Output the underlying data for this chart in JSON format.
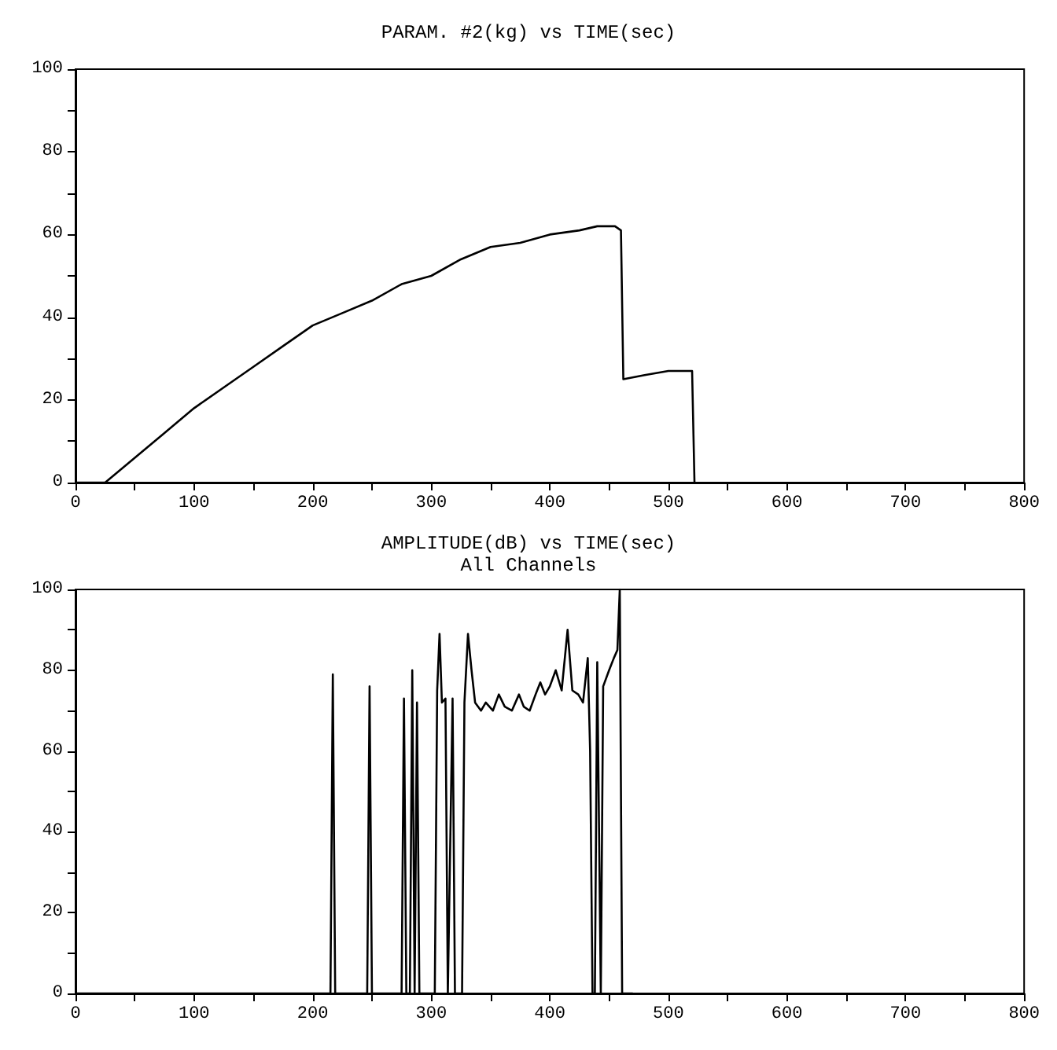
{
  "chart_data": [
    {
      "type": "line",
      "title": "PARAM. #2(kg) vs TIME(sec)",
      "xlim": [
        0,
        800
      ],
      "ylim": [
        0,
        100
      ],
      "xticks": [
        0,
        {
          "value": 50,
          "label": null
        },
        100,
        {
          "value": 150,
          "label": null
        },
        200,
        {
          "value": 250,
          "label": null
        },
        300,
        {
          "value": 350,
          "label": null
        },
        400,
        {
          "value": 450,
          "label": null
        },
        500,
        {
          "value": 550,
          "label": null
        },
        600,
        {
          "value": 650,
          "label": null
        },
        700,
        {
          "value": 750,
          "label": null
        },
        800
      ],
      "yticks": [
        0,
        {
          "value": 10,
          "label": null
        },
        20,
        {
          "value": 30,
          "label": null
        },
        40,
        {
          "value": 50,
          "label": null
        },
        60,
        {
          "value": 70,
          "label": null
        },
        80,
        {
          "value": 90,
          "label": null
        },
        100
      ],
      "grid": false,
      "marker": "none",
      "line_style": "solid",
      "series": [
        {
          "color": "#000000",
          "x": [
            0,
            25,
            50,
            75,
            100,
            125,
            150,
            175,
            200,
            225,
            250,
            275,
            300,
            325,
            350,
            375,
            400,
            425,
            440,
            455,
            460,
            462,
            480,
            500,
            520,
            522
          ],
          "values": [
            0,
            0,
            6,
            12,
            18,
            23,
            28,
            33,
            38,
            41,
            44,
            48,
            50,
            54,
            57,
            58,
            60,
            61,
            62,
            62,
            61,
            25,
            26,
            27,
            27,
            0
          ]
        }
      ]
    },
    {
      "type": "line",
      "title": "AMPLITUDE(dB) vs TIME(sec)",
      "subtitle": "All Channels",
      "xlim": [
        0,
        800
      ],
      "ylim": [
        0,
        100
      ],
      "xticks": [
        0,
        {
          "value": 50,
          "label": null
        },
        100,
        {
          "value": 150,
          "label": null
        },
        200,
        {
          "value": 250,
          "label": null
        },
        300,
        {
          "value": 350,
          "label": null
        },
        400,
        {
          "value": 450,
          "label": null
        },
        500,
        {
          "value": 550,
          "label": null
        },
        600,
        {
          "value": 650,
          "label": null
        },
        700,
        {
          "value": 750,
          "label": null
        },
        800
      ],
      "yticks": [
        0,
        {
          "value": 10,
          "label": null
        },
        20,
        {
          "value": 30,
          "label": null
        },
        40,
        {
          "value": 50,
          "label": null
        },
        60,
        {
          "value": 70,
          "label": null
        },
        80,
        {
          "value": 90,
          "label": null
        },
        100
      ],
      "grid": false,
      "marker": "none",
      "line_style": "solid",
      "series": [
        {
          "color": "#000000",
          "x": [
            0,
            215,
            217,
            219,
            246,
            248,
            250,
            275,
            277,
            279,
            282,
            284,
            286,
            288,
            290,
            303,
            305,
            307,
            309,
            312,
            314,
            318,
            320,
            326,
            328,
            331,
            334,
            337,
            342,
            346,
            352,
            357,
            362,
            368,
            374,
            378,
            383,
            388,
            392,
            396,
            400,
            405,
            410,
            415,
            419,
            424,
            428,
            432,
            434,
            436,
            438,
            440,
            443,
            445,
            450,
            454,
            457,
            459,
            461,
            470
          ],
          "values": [
            0,
            0,
            79,
            0,
            0,
            76,
            0,
            0,
            73,
            0,
            0,
            80,
            0,
            72,
            0,
            0,
            75,
            89,
            72,
            73,
            0,
            73,
            0,
            0,
            72,
            89,
            80,
            72,
            70,
            72,
            70,
            74,
            71,
            70,
            74,
            71,
            70,
            74,
            77,
            74,
            76,
            80,
            75,
            90,
            75,
            74,
            72,
            83,
            60,
            0,
            0,
            82,
            0,
            76,
            80,
            83,
            85,
            100,
            0,
            0
          ]
        }
      ]
    }
  ]
}
